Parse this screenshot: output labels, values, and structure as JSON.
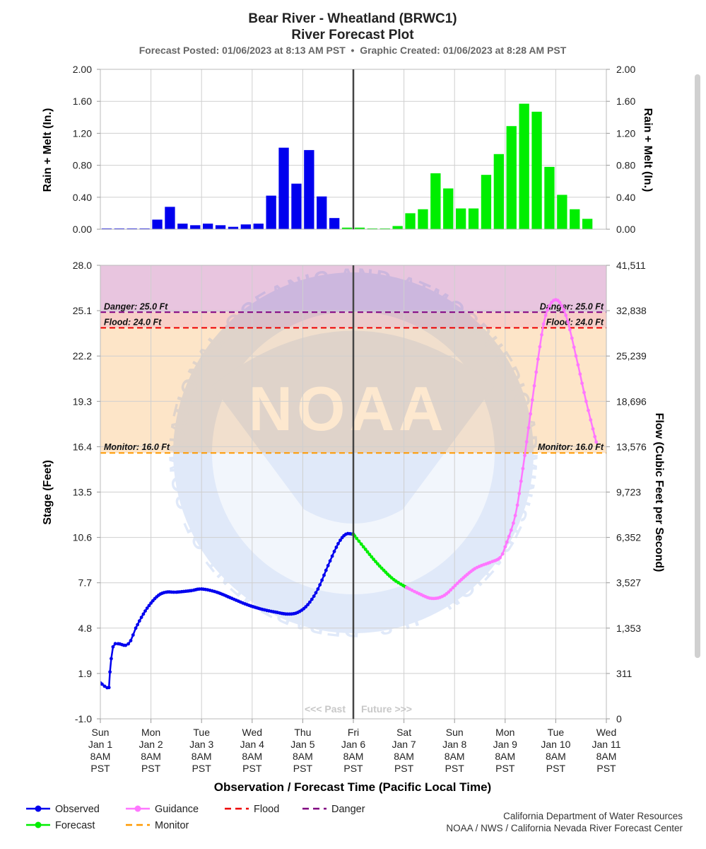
{
  "chart_data": {
    "type": "line",
    "title": "Bear River - Wheatland (BRWC1)",
    "subtitle": "River Forecast Plot",
    "posted_line": "Forecast Posted: 01/06/2023 at 8:13 AM PST  •  Graphic Created: 01/06/2023 at 8:28 AM PST",
    "xlabel": "Observation / Forecast Time (Pacific Local Time)",
    "x_ticks": [
      {
        "day": "Sun",
        "date": "Jan 1",
        "time": "8AM",
        "tz": "PST"
      },
      {
        "day": "Mon",
        "date": "Jan 2",
        "time": "8AM",
        "tz": "PST"
      },
      {
        "day": "Tue",
        "date": "Jan 3",
        "time": "8AM",
        "tz": "PST"
      },
      {
        "day": "Wed",
        "date": "Jan 4",
        "time": "8AM",
        "tz": "PST"
      },
      {
        "day": "Thu",
        "date": "Jan 5",
        "time": "8AM",
        "tz": "PST"
      },
      {
        "day": "Fri",
        "date": "Jan 6",
        "time": "8AM",
        "tz": "PST"
      },
      {
        "day": "Sat",
        "date": "Jan 7",
        "time": "8AM",
        "tz": "PST"
      },
      {
        "day": "Sun",
        "date": "Jan 8",
        "time": "8AM",
        "tz": "PST"
      },
      {
        "day": "Mon",
        "date": "Jan 9",
        "time": "8AM",
        "tz": "PST"
      },
      {
        "day": "Tue",
        "date": "Jan 10",
        "time": "8AM",
        "tz": "PST"
      },
      {
        "day": "Wed",
        "date": "Jan 11",
        "time": "8AM",
        "tz": "PST"
      }
    ],
    "x_range_days": [
      0,
      10
    ],
    "now_day": 5,
    "past_label": "<<< Past",
    "future_label": "Future >>>",
    "precip": {
      "ylabel_left": "Rain + Melt (In.)",
      "ylabel_right": "Rain + Melt (In.)",
      "ylim": [
        0,
        2
      ],
      "y_ticks": [
        "0.00",
        "0.40",
        "0.80",
        "1.20",
        "1.60",
        "2.00"
      ],
      "observed_color": "#0000ee",
      "forecast_color": "#00ee00",
      "bar_width_days": 0.2,
      "observed": [
        [
          0.125,
          0.01
        ],
        [
          0.375,
          0.01
        ],
        [
          0.625,
          0.01
        ],
        [
          0.875,
          0.01
        ],
        [
          1.125,
          0.12
        ],
        [
          1.375,
          0.28
        ],
        [
          1.625,
          0.07
        ],
        [
          1.875,
          0.05
        ],
        [
          2.125,
          0.07
        ],
        [
          2.375,
          0.05
        ],
        [
          2.625,
          0.03
        ],
        [
          2.875,
          0.06
        ],
        [
          3.125,
          0.07
        ],
        [
          3.375,
          0.42
        ],
        [
          3.625,
          1.02
        ],
        [
          3.875,
          0.57
        ],
        [
          4.125,
          0.99
        ],
        [
          4.375,
          0.41
        ],
        [
          4.625,
          0.14
        ]
      ],
      "forecast": [
        [
          4.875,
          0.02
        ],
        [
          5.125,
          0.02
        ],
        [
          5.375,
          0.01
        ],
        [
          5.625,
          0.01
        ],
        [
          5.875,
          0.04
        ],
        [
          6.125,
          0.2
        ],
        [
          6.375,
          0.25
        ],
        [
          6.625,
          0.7
        ],
        [
          6.875,
          0.51
        ],
        [
          7.125,
          0.26
        ],
        [
          7.375,
          0.26
        ],
        [
          7.625,
          0.68
        ],
        [
          7.875,
          0.94
        ],
        [
          8.125,
          1.29
        ],
        [
          8.375,
          1.57
        ],
        [
          8.625,
          1.47
        ],
        [
          8.875,
          0.78
        ],
        [
          9.125,
          0.43
        ],
        [
          9.375,
          0.25
        ],
        [
          9.625,
          0.13
        ]
      ]
    },
    "stage": {
      "ylabel_left": "Stage (Feet)",
      "ylabel_right": "Flow (Cubic Feet per Second)",
      "ylim": [
        -1.0,
        28.0
      ],
      "y_ticks_left": [
        "-1.0",
        "1.9",
        "4.8",
        "7.7",
        "10.6",
        "13.5",
        "16.4",
        "19.3",
        "22.2",
        "25.1",
        "28.0"
      ],
      "y_ticks_right": [
        "0",
        "311",
        "1,353",
        "3,527",
        "6,352",
        "9,723",
        "13,576",
        "18,696",
        "25,239",
        "32,838",
        "41,511"
      ],
      "thresholds": [
        {
          "name": "Danger",
          "value": 25.0,
          "label": "Danger: 25.0 Ft",
          "color": "#800080"
        },
        {
          "name": "Flood",
          "value": 24.0,
          "label": "Flood: 24.0 Ft",
          "color": "#ee0000"
        },
        {
          "name": "Monitor",
          "value": 16.0,
          "label": "Monitor: 16.0 Ft",
          "color": "#ff9900"
        }
      ],
      "zone_colors": {
        "danger": "#e8c5df",
        "flood": "#f8cfc8",
        "monitor": "#fde5c8"
      },
      "series": [
        {
          "name": "Observed",
          "color": "#0000ee",
          "points": [
            [
              0,
              1.3
            ],
            [
              0.17,
              1.0
            ],
            [
              0.19,
              2.0
            ],
            [
              0.25,
              3.6
            ],
            [
              0.35,
              3.8
            ],
            [
              0.5,
              3.7
            ],
            [
              0.6,
              4.0
            ],
            [
              0.7,
              4.8
            ],
            [
              0.85,
              5.7
            ],
            [
              1.0,
              6.4
            ],
            [
              1.15,
              6.9
            ],
            [
              1.3,
              7.1
            ],
            [
              1.5,
              7.1
            ],
            [
              1.8,
              7.2
            ],
            [
              2.0,
              7.3
            ],
            [
              2.3,
              7.1
            ],
            [
              2.6,
              6.7
            ],
            [
              2.9,
              6.3
            ],
            [
              3.2,
              6.0
            ],
            [
              3.5,
              5.8
            ],
            [
              3.7,
              5.7
            ],
            [
              3.9,
              5.8
            ],
            [
              4.1,
              6.3
            ],
            [
              4.3,
              7.3
            ],
            [
              4.5,
              8.8
            ],
            [
              4.7,
              10.2
            ],
            [
              4.85,
              10.8
            ],
            [
              5.0,
              10.8
            ]
          ]
        },
        {
          "name": "Forecast",
          "color": "#00ee00",
          "points": [
            [
              5.0,
              10.8
            ],
            [
              5.2,
              10.0
            ],
            [
              5.4,
              9.2
            ],
            [
              5.6,
              8.5
            ],
            [
              5.8,
              7.9
            ],
            [
              6.05,
              7.4
            ]
          ]
        },
        {
          "name": "Guidance",
          "color": "#ff77ff",
          "points": [
            [
              6.05,
              7.4
            ],
            [
              6.3,
              7.0
            ],
            [
              6.55,
              6.7
            ],
            [
              6.8,
              6.9
            ],
            [
              7.1,
              7.8
            ],
            [
              7.4,
              8.6
            ],
            [
              7.7,
              9.0
            ],
            [
              7.9,
              9.3
            ],
            [
              8.0,
              10.0
            ],
            [
              8.2,
              12.0
            ],
            [
              8.35,
              15.0
            ],
            [
              8.5,
              18.5
            ],
            [
              8.65,
              22.0
            ],
            [
              8.8,
              24.8
            ],
            [
              9.0,
              25.8
            ],
            [
              9.2,
              24.8
            ],
            [
              9.4,
              22.2
            ],
            [
              9.6,
              19.3
            ],
            [
              9.8,
              16.7
            ]
          ]
        }
      ]
    },
    "legend": [
      {
        "name": "Observed",
        "style": "line-dot",
        "color": "#0000ee"
      },
      {
        "name": "Guidance",
        "style": "line-dot",
        "color": "#ff77ff"
      },
      {
        "name": "Flood",
        "style": "dash",
        "color": "#ee0000"
      },
      {
        "name": "Danger",
        "style": "dash",
        "color": "#800080"
      },
      {
        "name": "Forecast",
        "style": "line-dot",
        "color": "#00ee00"
      },
      {
        "name": "Monitor",
        "style": "dash",
        "color": "#ff9900"
      }
    ],
    "credits": [
      "California Department of Water Resources",
      "NOAA / NWS / California Nevada River Forecast Center"
    ],
    "watermark": {
      "emblem_text": "NOAA",
      "ring_text": "NATIONAL OCEANIC AND ATMOSPHERIC ADMINISTRATION • U.S. DEPARTMENT OF COMMERCE"
    }
  }
}
